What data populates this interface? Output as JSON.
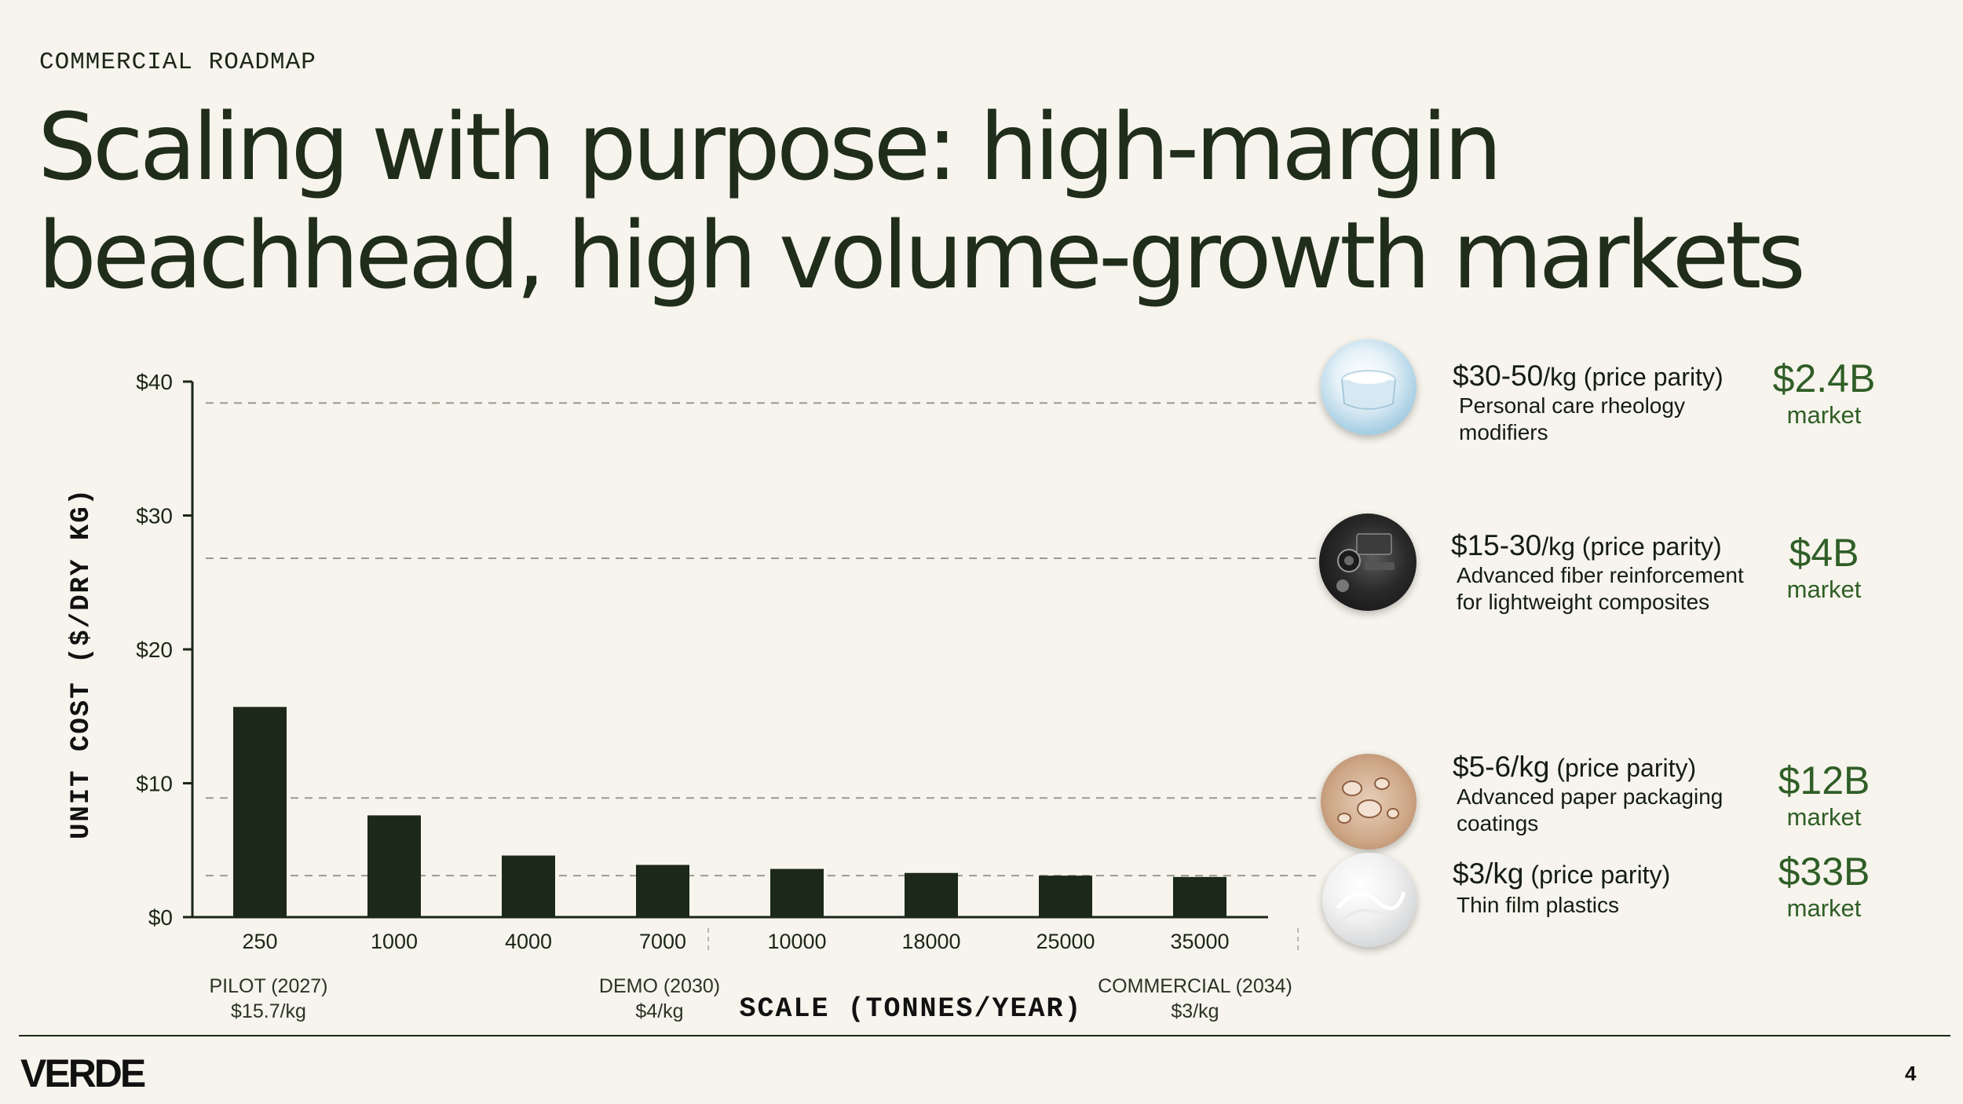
{
  "eyebrow": "COMMERCIAL ROADMAP",
  "headline": {
    "line1": "Scaling with purpose: high-margin",
    "line2": "beachhead, high volume-growth markets"
  },
  "chart_data": {
    "type": "bar",
    "ylabel": "UNIT COST ($/DRY KG)",
    "xlabel": "SCALE (TONNES/YEAR)",
    "ylim": [
      0,
      40
    ],
    "yticks": [
      "$0",
      "$10",
      "$20",
      "$30",
      "$40"
    ],
    "ytick_values": [
      0,
      10,
      20,
      30,
      40
    ],
    "categories": [
      "250",
      "1000",
      "4000",
      "7000",
      "10000",
      "18000",
      "25000",
      "35000"
    ],
    "values": [
      15.7,
      7.6,
      4.6,
      3.9,
      3.6,
      3.3,
      3.1,
      3.0
    ],
    "bar_color": "#1c2818",
    "reference_lines": [
      38.4,
      26.8,
      8.9,
      3.1
    ],
    "milestones": [
      {
        "category": "250",
        "label": "PILOT (2027)",
        "value": "$15.7/kg"
      },
      {
        "category": "7000",
        "label": "DEMO (2030)",
        "value": "$4/kg"
      },
      {
        "category": "35000",
        "label": "COMMERCIAL (2034)",
        "value": "$3/kg"
      }
    ]
  },
  "markets": [
    {
      "icon": "cream-jar-icon",
      "price": "$30-50",
      "price_unit": "/kg (price parity)",
      "desc": "Personal care rheology modifiers",
      "size": "$2.4B",
      "size_label": "market"
    },
    {
      "icon": "car-dashboard-icon",
      "price": "$15-30",
      "price_unit": "/kg (price parity)",
      "desc": "Advanced fiber reinforcement for lightweight composites",
      "size": "$4B",
      "size_label": "market"
    },
    {
      "icon": "water-droplets-icon",
      "price": "$5-6/kg",
      "price_unit": " (price parity)",
      "desc": "Advanced paper packaging coatings",
      "size": "$12B",
      "size_label": "market"
    },
    {
      "icon": "plastic-film-icon",
      "price": "$3/kg",
      "price_unit": " (price parity)",
      "desc": "Thin film plastics",
      "size": "$33B",
      "size_label": "market"
    }
  ],
  "footer": {
    "logo": "VERDE",
    "page": "4"
  },
  "colors": {
    "background": "#f6f4ec",
    "text": "#1c2618",
    "accent_green": "#2f5e27"
  }
}
